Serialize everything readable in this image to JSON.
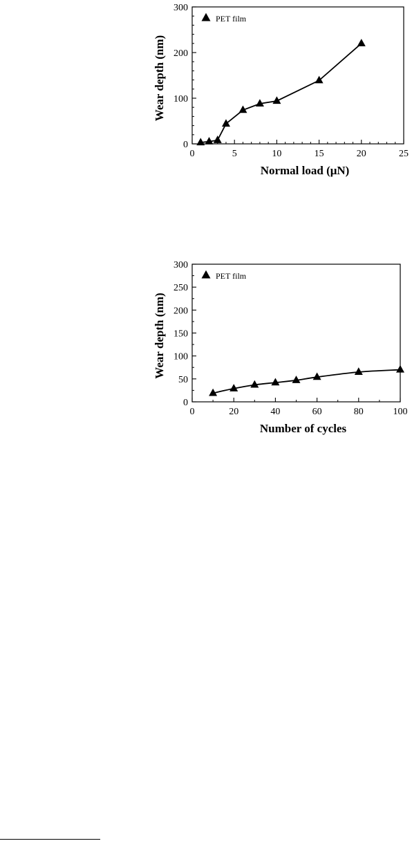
{
  "chart_data": [
    {
      "type": "line",
      "xlabel": "Normal load (μN)",
      "ylabel": "Wear depth (nm)",
      "xlim": [
        0,
        25
      ],
      "ylim": [
        0,
        300
      ],
      "xticks": [
        0,
        5,
        10,
        15,
        20,
        25
      ],
      "yticks": [
        0,
        100,
        200,
        300
      ],
      "x_minor_step": 1,
      "y_minor_step": 20,
      "grid": false,
      "legend_position": "top-left",
      "marker": "triangle",
      "series": [
        {
          "name": "PET film",
          "x": [
            1,
            2,
            3,
            4,
            6,
            8,
            10,
            15,
            20
          ],
          "values": [
            3,
            5,
            8,
            44,
            74,
            88,
            94,
            139,
            220
          ]
        }
      ]
    },
    {
      "type": "line",
      "xlabel": "Number of cycles",
      "ylabel": "Wear depth (nm)",
      "xlim": [
        0,
        100
      ],
      "ylim": [
        0,
        300
      ],
      "xticks": [
        0,
        20,
        40,
        60,
        80,
        100
      ],
      "yticks": [
        0,
        50,
        100,
        150,
        200,
        250,
        300
      ],
      "x_minor_step": 10,
      "y_minor_step": 25,
      "grid": false,
      "legend_position": "top-left",
      "marker": "triangle",
      "series": [
        {
          "name": "PET film",
          "x": [
            10,
            20,
            30,
            40,
            50,
            60,
            80,
            100
          ],
          "values": [
            19,
            29,
            37,
            42,
            47,
            54,
            65,
            70
          ]
        }
      ]
    }
  ]
}
